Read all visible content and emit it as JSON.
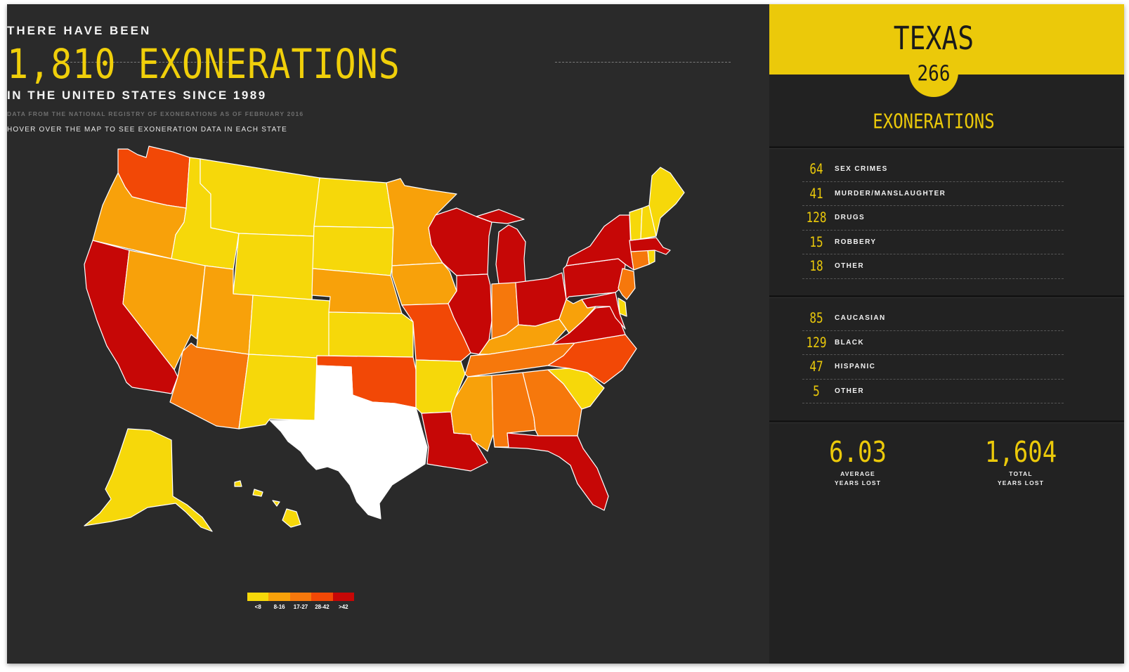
{
  "header": {
    "pre_title": "THERE HAVE BEEN",
    "big_title": "1,810 EXONERATIONS",
    "sub_title": "IN THE UNITED STATES SINCE 1989",
    "source": "DATA FROM THE NATIONAL REGISTRY OF EXONERATIONS AS OF FEBRUARY 2016",
    "hover_note": "HOVER OVER THE MAP TO SEE EXONERATION DATA IN EACH STATE"
  },
  "map": {
    "selected_state": "Texas",
    "colors": {
      "lt8": "#f6d80a",
      "8-16": "#f8a10a",
      "17-27": "#f6780c",
      "28-42": "#f24806",
      "gt42": "#c60706",
      "selected": "#ffffff"
    },
    "states": {
      "WA": "28-42",
      "OR": "8-16",
      "CA": "gt42",
      "ID": "lt8",
      "NV": "8-16",
      "MT": "lt8",
      "WY": "lt8",
      "UT": "8-16",
      "AZ": "17-27",
      "CO": "lt8",
      "NM": "lt8",
      "ND": "lt8",
      "SD": "lt8",
      "NE": "8-16",
      "KS": "lt8",
      "OK": "28-42",
      "TX": "selected",
      "MN": "8-16",
      "IA": "8-16",
      "MO": "28-42",
      "AR": "lt8",
      "LA": "gt42",
      "WI": "gt42",
      "IL": "gt42",
      "MI": "gt42",
      "IN": "17-27",
      "OH": "gt42",
      "KY": "8-16",
      "TN": "17-27",
      "MS": "8-16",
      "AL": "17-27",
      "GA": "17-27",
      "FL": "gt42",
      "SC": "lt8",
      "NC": "28-42",
      "VA": "gt42",
      "WV": "8-16",
      "PA": "gt42",
      "NY": "gt42",
      "NJ": "17-27",
      "DE": "lt8",
      "MD": "gt42",
      "CT": "17-27",
      "RI": "lt8",
      "MA": "gt42",
      "VT": "lt8",
      "NH": "lt8",
      "ME": "lt8",
      "AK": "lt8",
      "HI": "lt8"
    }
  },
  "legend": {
    "items": [
      {
        "label": "<8",
        "color": "#f6d80a"
      },
      {
        "label": "8-16",
        "color": "#f8a10a"
      },
      {
        "label": "17-27",
        "color": "#f6780c"
      },
      {
        "label": "28-42",
        "color": "#f24806"
      },
      {
        "label": ">42",
        "color": "#c60706"
      }
    ]
  },
  "panel": {
    "state": "TEXAS",
    "count": "266",
    "exonerations_label": "EXONERATIONS",
    "crimes": [
      {
        "value": "64",
        "label": "SEX CRIMES"
      },
      {
        "value": "41",
        "label": "MURDER/MANSLAUGHTER"
      },
      {
        "value": "128",
        "label": "DRUGS"
      },
      {
        "value": "15",
        "label": "ROBBERY"
      },
      {
        "value": "18",
        "label": "OTHER"
      }
    ],
    "race": [
      {
        "value": "85",
        "label": "CAUCASIAN"
      },
      {
        "value": "129",
        "label": "BLACK"
      },
      {
        "value": "47",
        "label": "HISPANIC"
      },
      {
        "value": "5",
        "label": "OTHER"
      }
    ],
    "avg_years": {
      "value": "6.03",
      "label_line1": "AVERAGE",
      "label_line2": "YEARS LOST"
    },
    "total_years": {
      "value": "1,604",
      "label_line1": "TOTAL",
      "label_line2": "YEARS LOST"
    }
  }
}
